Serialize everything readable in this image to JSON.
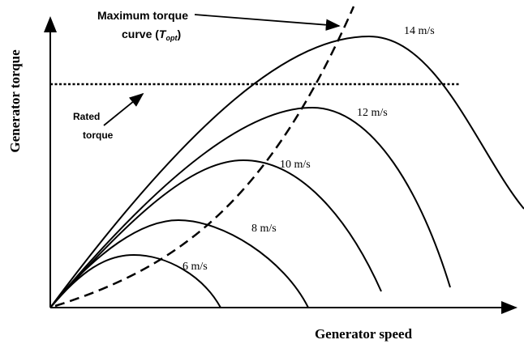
{
  "axes": {
    "y_label": "Generator torque",
    "x_label": "Generator speed"
  },
  "annotations": {
    "max_torque_line1": "Maximum torque",
    "max_torque_line2_prefix": "curve (",
    "max_torque_symbol": "T",
    "max_torque_subscript": "opt",
    "max_torque_line2_suffix": ")",
    "rated_line1": "Rated",
    "rated_line2": "torque"
  },
  "curves": [
    {
      "label": "14 m/s"
    },
    {
      "label": "12 m/s"
    },
    {
      "label": "10 m/s"
    },
    {
      "label": "8 m/s"
    },
    {
      "label": "6 m/s"
    }
  ]
}
